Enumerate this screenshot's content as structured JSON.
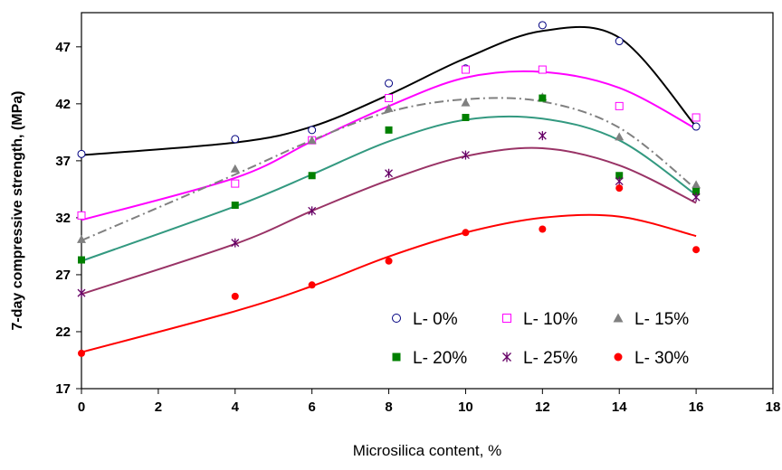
{
  "chart_data": {
    "type": "scatter",
    "title": "",
    "xlabel": "Microsilica content, %",
    "ylabel": "7-day compressive strength, (MPa)",
    "xlim": [
      0,
      18
    ],
    "ylim": [
      17,
      50
    ],
    "xticks": [
      0,
      2,
      4,
      6,
      8,
      10,
      12,
      14,
      16,
      18
    ],
    "yticks": [
      17,
      22,
      27,
      32,
      37,
      42,
      47
    ],
    "grid": false,
    "legend_position": "inside-lower-right",
    "series": [
      {
        "name": "L- 0%",
        "marker": "open-circle",
        "color": "#000080",
        "line_color": "#000000",
        "line_style": "solid",
        "x": [
          0,
          4,
          6,
          8,
          10,
          12,
          14,
          16
        ],
        "y": [
          37.6,
          38.9,
          39.7,
          43.8,
          45.1,
          48.9,
          47.5,
          40.0
        ],
        "trend_y": [
          37.5,
          38.6,
          40.0,
          42.8,
          46.0,
          48.4,
          47.8,
          40.0
        ]
      },
      {
        "name": "L- 10%",
        "marker": "open-square",
        "color": "#FF00FF",
        "line_color": "#FF00FF",
        "line_style": "solid",
        "x": [
          0,
          4,
          6,
          8,
          10,
          12,
          14,
          16
        ],
        "y": [
          32.2,
          35.0,
          38.8,
          42.5,
          45.0,
          45.0,
          41.8,
          40.8
        ],
        "trend_y": [
          31.8,
          35.5,
          38.7,
          41.8,
          44.3,
          44.8,
          43.4,
          39.8
        ]
      },
      {
        "name": "L- 15%",
        "marker": "filled-triangle",
        "color": "#808080",
        "line_color": "#808080",
        "line_style": "dashdot",
        "x": [
          0,
          4,
          6,
          8,
          10,
          12,
          14,
          16
        ],
        "y": [
          30.1,
          36.3,
          38.8,
          41.6,
          42.1,
          42.6,
          39.1,
          34.9
        ],
        "trend_y": [
          30.0,
          35.8,
          38.8,
          41.3,
          42.4,
          42.2,
          39.9,
          34.5
        ]
      },
      {
        "name": "L- 20%",
        "marker": "filled-square",
        "color": "#008000",
        "line_color": "#339980",
        "line_style": "solid",
        "x": [
          0,
          4,
          6,
          8,
          10,
          12,
          14,
          16
        ],
        "y": [
          28.3,
          33.1,
          35.7,
          39.7,
          40.8,
          42.5,
          35.7,
          34.3
        ],
        "trend_y": [
          28.2,
          33.0,
          35.8,
          38.7,
          40.6,
          40.7,
          38.8,
          34.0
        ]
      },
      {
        "name": "L- 25%",
        "marker": "asterisk",
        "color": "#660066",
        "line_color": "#993366",
        "line_style": "solid",
        "x": [
          0,
          4,
          6,
          8,
          10,
          12,
          14,
          16
        ],
        "y": [
          25.4,
          29.8,
          32.6,
          35.9,
          37.5,
          39.2,
          35.2,
          33.8
        ],
        "trend_y": [
          25.3,
          29.7,
          32.6,
          35.3,
          37.4,
          38.1,
          36.6,
          33.3
        ]
      },
      {
        "name": "L- 30%",
        "marker": "filled-circle",
        "color": "#FF0000",
        "line_color": "#FF0000",
        "line_style": "solid",
        "x": [
          0,
          4,
          6,
          8,
          10,
          12,
          14,
          16
        ],
        "y": [
          20.1,
          25.1,
          26.1,
          28.2,
          30.7,
          31.0,
          34.6,
          29.2
        ],
        "trend_y": [
          20.2,
          23.8,
          26.0,
          28.6,
          30.7,
          32.0,
          32.1,
          30.4
        ]
      }
    ]
  }
}
